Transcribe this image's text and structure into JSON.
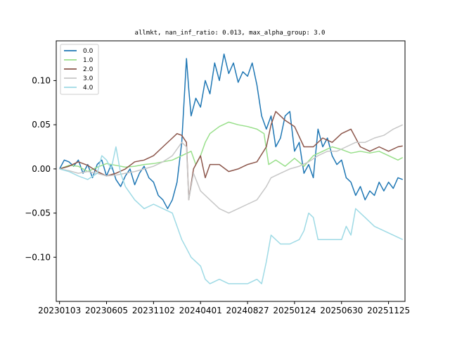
{
  "chart_data": {
    "type": "line",
    "title": "allmkt, nan_inf_ratio: 0.013, max_alpha_group: 3.0",
    "xlabel": "",
    "ylabel": "",
    "x_tick_labels": [
      "20230103",
      "20230605",
      "20231102",
      "20240401",
      "20240827",
      "20250124",
      "20250630",
      "20251125"
    ],
    "y_ticks": [
      -0.1,
      -0.05,
      0.0,
      0.05,
      0.1
    ],
    "y_tick_labels": [
      "-0.10",
      "-0.05",
      "0.00",
      "0.05",
      "0.10"
    ],
    "ylim": [
      -0.15,
      0.145
    ],
    "xlim": [
      -0.07,
      7.35
    ],
    "legend_position": "upper-left",
    "grid": false,
    "series": [
      {
        "name": "0.0",
        "color": "#1f77b4",
        "points": [
          [
            0,
            0
          ],
          [
            0.1,
            0.01
          ],
          [
            0.2,
            0.008
          ],
          [
            0.3,
            0.003
          ],
          [
            0.4,
            0.01
          ],
          [
            0.5,
            -0.005
          ],
          [
            0.6,
            0.005
          ],
          [
            0.7,
            -0.01
          ],
          [
            0.8,
            0.005
          ],
          [
            0.9,
            0.01
          ],
          [
            1.0,
            -0.008
          ],
          [
            1.1,
            0.005
          ],
          [
            1.2,
            -0.012
          ],
          [
            1.3,
            -0.02
          ],
          [
            1.4,
            -0.008
          ],
          [
            1.5,
            0.0
          ],
          [
            1.6,
            -0.018
          ],
          [
            1.7,
            -0.005
          ],
          [
            1.8,
            0.003
          ],
          [
            1.9,
            -0.01
          ],
          [
            2.0,
            -0.015
          ],
          [
            2.1,
            -0.03
          ],
          [
            2.2,
            -0.035
          ],
          [
            2.3,
            -0.045
          ],
          [
            2.4,
            -0.035
          ],
          [
            2.5,
            -0.015
          ],
          [
            2.6,
            0.03
          ],
          [
            2.7,
            0.125
          ],
          [
            2.75,
            0.09
          ],
          [
            2.8,
            0.06
          ],
          [
            2.9,
            0.08
          ],
          [
            3.0,
            0.07
          ],
          [
            3.1,
            0.1
          ],
          [
            3.2,
            0.085
          ],
          [
            3.3,
            0.12
          ],
          [
            3.4,
            0.1
          ],
          [
            3.5,
            0.13
          ],
          [
            3.6,
            0.108
          ],
          [
            3.7,
            0.12
          ],
          [
            3.8,
            0.098
          ],
          [
            3.9,
            0.11
          ],
          [
            4.0,
            0.105
          ],
          [
            4.1,
            0.12
          ],
          [
            4.2,
            0.095
          ],
          [
            4.3,
            0.06
          ],
          [
            4.4,
            0.045
          ],
          [
            4.5,
            0.06
          ],
          [
            4.6,
            0.025
          ],
          [
            4.7,
            0.035
          ],
          [
            4.8,
            0.06
          ],
          [
            4.9,
            0.065
          ],
          [
            5.0,
            0.02
          ],
          [
            5.1,
            0.03
          ],
          [
            5.2,
            -0.005
          ],
          [
            5.3,
            0.005
          ],
          [
            5.4,
            -0.01
          ],
          [
            5.5,
            0.045
          ],
          [
            5.6,
            0.025
          ],
          [
            5.7,
            0.035
          ],
          [
            5.8,
            0.015
          ],
          [
            5.9,
            0.005
          ],
          [
            6.0,
            0.01
          ],
          [
            6.1,
            -0.01
          ],
          [
            6.2,
            -0.015
          ],
          [
            6.3,
            -0.03
          ],
          [
            6.4,
            -0.02
          ],
          [
            6.5,
            -0.035
          ],
          [
            6.6,
            -0.025
          ],
          [
            6.7,
            -0.03
          ],
          [
            6.8,
            -0.015
          ],
          [
            6.9,
            -0.025
          ],
          [
            7.0,
            -0.015
          ],
          [
            7.1,
            -0.022
          ],
          [
            7.2,
            -0.01
          ],
          [
            7.3,
            -0.012
          ]
        ]
      },
      {
        "name": "1.0",
        "color": "#98df8a",
        "points": [
          [
            0,
            0
          ],
          [
            0.2,
            0.004
          ],
          [
            0.4,
            0.003
          ],
          [
            0.6,
            -0.003
          ],
          [
            0.8,
            0.002
          ],
          [
            1.0,
            0.006
          ],
          [
            1.2,
            0.004
          ],
          [
            1.4,
            0.002
          ],
          [
            1.6,
            0.003
          ],
          [
            1.8,
            0.005
          ],
          [
            2.0,
            0.006
          ],
          [
            2.2,
            0.008
          ],
          [
            2.4,
            0.01
          ],
          [
            2.6,
            0.015
          ],
          [
            2.8,
            0.02
          ],
          [
            2.9,
            0.005
          ],
          [
            3.0,
            0.015
          ],
          [
            3.1,
            0.03
          ],
          [
            3.2,
            0.04
          ],
          [
            3.4,
            0.048
          ],
          [
            3.6,
            0.053
          ],
          [
            3.8,
            0.05
          ],
          [
            4.0,
            0.048
          ],
          [
            4.2,
            0.045
          ],
          [
            4.35,
            0.04
          ],
          [
            4.45,
            0.005
          ],
          [
            4.6,
            0.01
          ],
          [
            4.8,
            0.003
          ],
          [
            5.0,
            0.012
          ],
          [
            5.2,
            0.003
          ],
          [
            5.4,
            0.015
          ],
          [
            5.6,
            0.02
          ],
          [
            5.8,
            0.025
          ],
          [
            6.0,
            0.022
          ],
          [
            6.2,
            0.018
          ],
          [
            6.4,
            0.02
          ],
          [
            6.6,
            0.018
          ],
          [
            6.8,
            0.02
          ],
          [
            7.0,
            0.015
          ],
          [
            7.2,
            0.01
          ],
          [
            7.3,
            0.013
          ]
        ]
      },
      {
        "name": "2.0",
        "color": "#8c564b",
        "points": [
          [
            0,
            0
          ],
          [
            0.2,
            0.003
          ],
          [
            0.4,
            0.008
          ],
          [
            0.6,
            0.004
          ],
          [
            0.8,
            -0.003
          ],
          [
            1.0,
            -0.008
          ],
          [
            1.2,
            -0.005
          ],
          [
            1.4,
            0.0
          ],
          [
            1.6,
            0.008
          ],
          [
            1.8,
            0.01
          ],
          [
            2.0,
            0.015
          ],
          [
            2.2,
            0.025
          ],
          [
            2.4,
            0.035
          ],
          [
            2.5,
            0.04
          ],
          [
            2.6,
            0.038
          ],
          [
            2.7,
            0.03
          ],
          [
            2.75,
            -0.035
          ],
          [
            2.85,
            0.0
          ],
          [
            3.0,
            0.015
          ],
          [
            3.1,
            -0.01
          ],
          [
            3.2,
            0.005
          ],
          [
            3.4,
            0.005
          ],
          [
            3.6,
            -0.003
          ],
          [
            3.8,
            0.0
          ],
          [
            4.0,
            0.005
          ],
          [
            4.2,
            0.008
          ],
          [
            4.4,
            0.025
          ],
          [
            4.5,
            0.05
          ],
          [
            4.6,
            0.065
          ],
          [
            4.8,
            0.055
          ],
          [
            5.0,
            0.048
          ],
          [
            5.2,
            0.025
          ],
          [
            5.4,
            0.025
          ],
          [
            5.6,
            0.035
          ],
          [
            5.8,
            0.03
          ],
          [
            6.0,
            0.04
          ],
          [
            6.2,
            0.045
          ],
          [
            6.4,
            0.025
          ],
          [
            6.6,
            0.02
          ],
          [
            6.8,
            0.025
          ],
          [
            7.0,
            0.02
          ],
          [
            7.2,
            0.025
          ],
          [
            7.3,
            0.026
          ]
        ]
      },
      {
        "name": "3.0",
        "color": "#c7c7c7",
        "points": [
          [
            0,
            0
          ],
          [
            0.2,
            -0.002
          ],
          [
            0.4,
            -0.005
          ],
          [
            0.6,
            -0.003
          ],
          [
            0.8,
            -0.005
          ],
          [
            1.0,
            -0.008
          ],
          [
            1.2,
            -0.007
          ],
          [
            1.4,
            -0.005
          ],
          [
            1.6,
            -0.003
          ],
          [
            1.8,
            0.0
          ],
          [
            2.0,
            0.003
          ],
          [
            2.2,
            0.008
          ],
          [
            2.4,
            0.015
          ],
          [
            2.6,
            0.03
          ],
          [
            2.7,
            0.025
          ],
          [
            2.75,
            -0.035
          ],
          [
            2.85,
            -0.005
          ],
          [
            3.0,
            -0.025
          ],
          [
            3.2,
            -0.035
          ],
          [
            3.4,
            -0.045
          ],
          [
            3.6,
            -0.05
          ],
          [
            3.8,
            -0.045
          ],
          [
            4.0,
            -0.04
          ],
          [
            4.2,
            -0.035
          ],
          [
            4.4,
            -0.02
          ],
          [
            4.5,
            -0.01
          ],
          [
            4.7,
            -0.005
          ],
          [
            4.9,
            0.0
          ],
          [
            5.1,
            0.003
          ],
          [
            5.3,
            0.008
          ],
          [
            5.5,
            0.015
          ],
          [
            5.7,
            0.02
          ],
          [
            5.9,
            0.02
          ],
          [
            6.1,
            0.025
          ],
          [
            6.3,
            0.03
          ],
          [
            6.5,
            0.03
          ],
          [
            6.7,
            0.035
          ],
          [
            6.9,
            0.038
          ],
          [
            7.1,
            0.045
          ],
          [
            7.3,
            0.05
          ]
        ]
      },
      {
        "name": "4.0",
        "color": "#9edae5",
        "points": [
          [
            0,
            0
          ],
          [
            0.2,
            -0.003
          ],
          [
            0.4,
            -0.008
          ],
          [
            0.6,
            -0.012
          ],
          [
            0.8,
            -0.005
          ],
          [
            0.9,
            0.015
          ],
          [
            1.0,
            0.01
          ],
          [
            1.1,
            0.0
          ],
          [
            1.2,
            0.025
          ],
          [
            1.3,
            -0.005
          ],
          [
            1.4,
            -0.02
          ],
          [
            1.6,
            -0.035
          ],
          [
            1.8,
            -0.045
          ],
          [
            2.0,
            -0.04
          ],
          [
            2.2,
            -0.045
          ],
          [
            2.4,
            -0.05
          ],
          [
            2.5,
            -0.065
          ],
          [
            2.6,
            -0.08
          ],
          [
            2.7,
            -0.09
          ],
          [
            2.8,
            -0.1
          ],
          [
            3.0,
            -0.11
          ],
          [
            3.1,
            -0.125
          ],
          [
            3.2,
            -0.13
          ],
          [
            3.4,
            -0.125
          ],
          [
            3.6,
            -0.13
          ],
          [
            3.8,
            -0.13
          ],
          [
            4.0,
            -0.13
          ],
          [
            4.2,
            -0.125
          ],
          [
            4.3,
            -0.13
          ],
          [
            4.4,
            -0.105
          ],
          [
            4.5,
            -0.075
          ],
          [
            4.7,
            -0.085
          ],
          [
            4.9,
            -0.085
          ],
          [
            5.1,
            -0.08
          ],
          [
            5.2,
            -0.07
          ],
          [
            5.3,
            -0.05
          ],
          [
            5.4,
            -0.055
          ],
          [
            5.5,
            -0.08
          ],
          [
            5.6,
            -0.08
          ],
          [
            5.8,
            -0.08
          ],
          [
            6.0,
            -0.08
          ],
          [
            6.1,
            -0.065
          ],
          [
            6.2,
            -0.075
          ],
          [
            6.3,
            -0.045
          ],
          [
            6.5,
            -0.055
          ],
          [
            6.7,
            -0.065
          ],
          [
            6.9,
            -0.07
          ],
          [
            7.1,
            -0.075
          ],
          [
            7.3,
            -0.08
          ]
        ]
      }
    ]
  }
}
